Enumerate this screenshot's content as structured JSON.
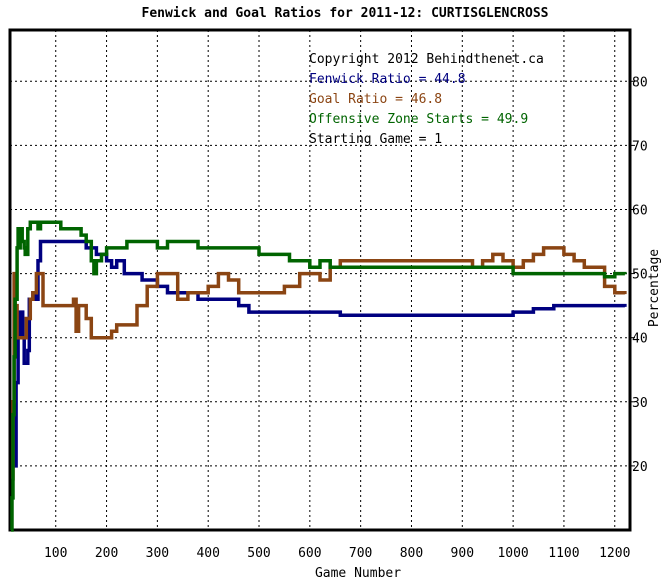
{
  "chart_data": {
    "type": "line",
    "title": "Fenwick and Goal Ratios for 2011-12: CURTISGLENCROSS",
    "xlabel": "Game Number",
    "ylabel": "Percentage",
    "xlim": [
      10,
      1230
    ],
    "ylim": [
      10,
      88
    ],
    "x_ticks": [
      100,
      200,
      300,
      400,
      500,
      600,
      700,
      800,
      900,
      1000,
      1100,
      1200
    ],
    "y_ticks": [
      20,
      30,
      40,
      50,
      60,
      70,
      80
    ],
    "grid": true,
    "legend_placement": "top-right",
    "annotations": [
      {
        "text": "Copyright 2012 Behindthenet.ca",
        "color": "#000000"
      },
      {
        "text": "Fenwick Ratio = 44.8",
        "color": "#000080"
      },
      {
        "text": "Goal Ratio = 46.8",
        "color": "#8B4513"
      },
      {
        "text": "Offensive Zone Starts = 49.9",
        "color": "#006400"
      },
      {
        "text": "Starting Game = 1",
        "color": "#000000"
      }
    ],
    "series": [
      {
        "name": "Fenwick Ratio",
        "color": "#000080",
        "points": [
          [
            18,
            20
          ],
          [
            22,
            33
          ],
          [
            26,
            40
          ],
          [
            30,
            44
          ],
          [
            35,
            40
          ],
          [
            38,
            36
          ],
          [
            42,
            36
          ],
          [
            45,
            38
          ],
          [
            48,
            46
          ],
          [
            55,
            47
          ],
          [
            60,
            46
          ],
          [
            65,
            52
          ],
          [
            70,
            55
          ],
          [
            80,
            55
          ],
          [
            90,
            55
          ],
          [
            100,
            55
          ],
          [
            110,
            55
          ],
          [
            130,
            55
          ],
          [
            150,
            55
          ],
          [
            160,
            54
          ],
          [
            170,
            54
          ],
          [
            180,
            53
          ],
          [
            200,
            52
          ],
          [
            210,
            51
          ],
          [
            220,
            52
          ],
          [
            235,
            50
          ],
          [
            250,
            50
          ],
          [
            270,
            49
          ],
          [
            290,
            49
          ],
          [
            300,
            48
          ],
          [
            320,
            47
          ],
          [
            340,
            47
          ],
          [
            360,
            47
          ],
          [
            380,
            46
          ],
          [
            400,
            46
          ],
          [
            420,
            46
          ],
          [
            440,
            46
          ],
          [
            460,
            45
          ],
          [
            480,
            44
          ],
          [
            500,
            44
          ],
          [
            520,
            44
          ],
          [
            550,
            44
          ],
          [
            600,
            44
          ],
          [
            640,
            44
          ],
          [
            660,
            43.5
          ],
          [
            700,
            43.5
          ],
          [
            750,
            43.5
          ],
          [
            800,
            43.5
          ],
          [
            850,
            43.5
          ],
          [
            900,
            43.5
          ],
          [
            950,
            43.5
          ],
          [
            1000,
            44
          ],
          [
            1040,
            44.5
          ],
          [
            1080,
            45
          ],
          [
            1120,
            45
          ],
          [
            1160,
            45
          ],
          [
            1200,
            45
          ],
          [
            1220,
            44.8
          ]
        ]
      },
      {
        "name": "Goal Ratio",
        "color": "#8B4513",
        "points": [
          [
            14,
            18
          ],
          [
            16,
            30
          ],
          [
            18,
            50
          ],
          [
            20,
            45
          ],
          [
            24,
            40
          ],
          [
            30,
            40
          ],
          [
            36,
            40
          ],
          [
            42,
            43
          ],
          [
            45,
            43
          ],
          [
            50,
            46
          ],
          [
            55,
            47
          ],
          [
            60,
            47
          ],
          [
            62,
            50
          ],
          [
            70,
            50
          ],
          [
            75,
            45
          ],
          [
            90,
            45
          ],
          [
            110,
            45
          ],
          [
            125,
            45
          ],
          [
            135,
            46
          ],
          [
            140,
            41
          ],
          [
            145,
            45
          ],
          [
            150,
            45
          ],
          [
            160,
            43
          ],
          [
            170,
            40
          ],
          [
            200,
            40
          ],
          [
            210,
            41
          ],
          [
            220,
            42
          ],
          [
            240,
            42
          ],
          [
            260,
            45
          ],
          [
            280,
            48
          ],
          [
            300,
            50
          ],
          [
            320,
            50
          ],
          [
            340,
            46
          ],
          [
            360,
            47
          ],
          [
            380,
            47
          ],
          [
            400,
            48
          ],
          [
            420,
            50
          ],
          [
            440,
            49
          ],
          [
            460,
            47
          ],
          [
            480,
            47
          ],
          [
            500,
            47
          ],
          [
            530,
            47
          ],
          [
            550,
            48
          ],
          [
            580,
            50
          ],
          [
            600,
            50
          ],
          [
            620,
            49
          ],
          [
            640,
            51
          ],
          [
            660,
            52
          ],
          [
            700,
            52
          ],
          [
            750,
            52
          ],
          [
            800,
            52
          ],
          [
            850,
            52
          ],
          [
            900,
            52
          ],
          [
            920,
            51
          ],
          [
            940,
            52
          ],
          [
            960,
            53
          ],
          [
            980,
            52
          ],
          [
            1000,
            51
          ],
          [
            1020,
            52
          ],
          [
            1040,
            53
          ],
          [
            1060,
            54
          ],
          [
            1080,
            54
          ],
          [
            1100,
            53
          ],
          [
            1120,
            52
          ],
          [
            1140,
            51
          ],
          [
            1160,
            51
          ],
          [
            1180,
            48
          ],
          [
            1200,
            47
          ],
          [
            1220,
            46.8
          ]
        ]
      },
      {
        "name": "Offensive Zone Starts",
        "color": "#006400",
        "points": [
          [
            12,
            10
          ],
          [
            14,
            15
          ],
          [
            16,
            28
          ],
          [
            18,
            37
          ],
          [
            20,
            46
          ],
          [
            24,
            54
          ],
          [
            26,
            57
          ],
          [
            28,
            54
          ],
          [
            30,
            57
          ],
          [
            34,
            55
          ],
          [
            38,
            54
          ],
          [
            40,
            53
          ],
          [
            42,
            53
          ],
          [
            45,
            57
          ],
          [
            50,
            58
          ],
          [
            60,
            58
          ],
          [
            65,
            57
          ],
          [
            70,
            58
          ],
          [
            80,
            58
          ],
          [
            90,
            58
          ],
          [
            100,
            58
          ],
          [
            110,
            57
          ],
          [
            120,
            57
          ],
          [
            130,
            57
          ],
          [
            140,
            57
          ],
          [
            150,
            56
          ],
          [
            160,
            55
          ],
          [
            170,
            52
          ],
          [
            175,
            50
          ],
          [
            180,
            52
          ],
          [
            190,
            53
          ],
          [
            200,
            54
          ],
          [
            220,
            54
          ],
          [
            240,
            55
          ],
          [
            260,
            55
          ],
          [
            280,
            55
          ],
          [
            300,
            54
          ],
          [
            320,
            55
          ],
          [
            340,
            55
          ],
          [
            360,
            55
          ],
          [
            380,
            54
          ],
          [
            400,
            54
          ],
          [
            420,
            54
          ],
          [
            440,
            54
          ],
          [
            460,
            54
          ],
          [
            480,
            54
          ],
          [
            500,
            53
          ],
          [
            520,
            53
          ],
          [
            540,
            53
          ],
          [
            560,
            52
          ],
          [
            580,
            52
          ],
          [
            600,
            51
          ],
          [
            620,
            52
          ],
          [
            640,
            51
          ],
          [
            660,
            51
          ],
          [
            700,
            51
          ],
          [
            750,
            51
          ],
          [
            800,
            51
          ],
          [
            850,
            51
          ],
          [
            900,
            51
          ],
          [
            950,
            51
          ],
          [
            1000,
            50
          ],
          [
            1050,
            50
          ],
          [
            1100,
            50
          ],
          [
            1150,
            50
          ],
          [
            1180,
            49.5
          ],
          [
            1200,
            50
          ],
          [
            1220,
            49.9
          ]
        ]
      }
    ]
  }
}
